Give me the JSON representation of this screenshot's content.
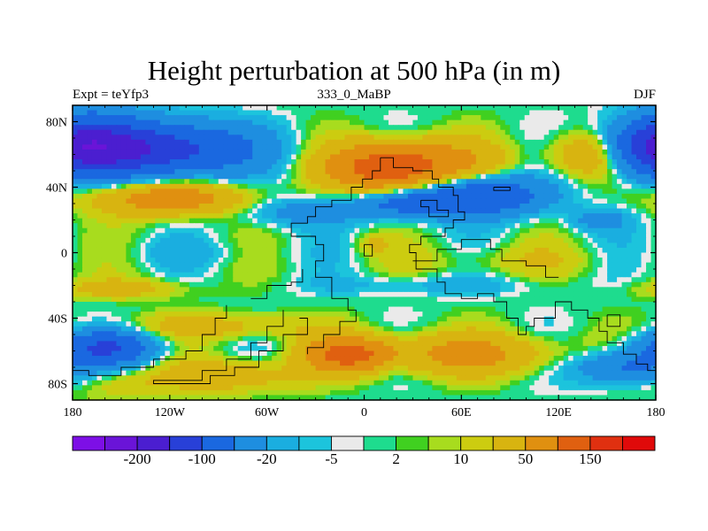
{
  "chart_data": {
    "type": "heatmap",
    "title": "Height perturbation at 500 hPa (in m)",
    "subtitle_left": "Expt = teYfp3",
    "subtitle_center": "333_0_MaBP",
    "subtitle_right": "DJF",
    "x_range": [
      -180,
      180
    ],
    "y_range": [
      -90,
      90
    ],
    "x_ticks": [
      {
        "value": -180,
        "label": "180"
      },
      {
        "value": -120,
        "label": "120W"
      },
      {
        "value": -60,
        "label": "60W"
      },
      {
        "value": 0,
        "label": "0"
      },
      {
        "value": 60,
        "label": "60E"
      },
      {
        "value": 120,
        "label": "120E"
      },
      {
        "value": 180,
        "label": "180"
      }
    ],
    "y_ticks": [
      {
        "value": 80,
        "label": "80N"
      },
      {
        "value": 40,
        "label": "40N"
      },
      {
        "value": 0,
        "label": "0"
      },
      {
        "value": -40,
        "label": "40S"
      },
      {
        "value": -80,
        "label": "80S"
      }
    ],
    "colorbar_colors": [
      "#7d0fe6",
      "#6a14d8",
      "#4b1ed0",
      "#2840d8",
      "#1a68e0",
      "#1e8ee0",
      "#1aaee0",
      "#1cc4dc",
      "#eaeaea",
      "#1edc8e",
      "#40d020",
      "#a8dc1e",
      "#cccc10",
      "#d8b410",
      "#e09010",
      "#e06010",
      "#e03010",
      "#e00a0a"
    ],
    "colorbar_labels": [
      {
        "boundary": 2,
        "label": "-200"
      },
      {
        "boundary": 4,
        "label": "-100"
      },
      {
        "boundary": 6,
        "label": "-20"
      },
      {
        "boundary": 8,
        "label": "-5"
      },
      {
        "boundary": 10,
        "label": "2"
      },
      {
        "boundary": 12,
        "label": "10"
      },
      {
        "boundary": 14,
        "label": "50"
      },
      {
        "boundary": 16,
        "label": "150"
      }
    ],
    "field_blobs": [
      {
        "lon": -130,
        "lat": 63,
        "rlon": 55,
        "rlat": 16,
        "amp": -140
      },
      {
        "lon": -170,
        "lat": 70,
        "rlon": 30,
        "rlat": 18,
        "amp": -60
      },
      {
        "lon": 175,
        "lat": 63,
        "rlon": 30,
        "rlat": 16,
        "amp": -80
      },
      {
        "lon": -120,
        "lat": 33,
        "rlon": 45,
        "rlat": 10,
        "amp": 80
      },
      {
        "lon": -40,
        "lat": 25,
        "rlon": 40,
        "rlat": 9,
        "amp": -30
      },
      {
        "lon": 15,
        "lat": 52,
        "rlon": 35,
        "rlat": 14,
        "amp": 140
      },
      {
        "lon": 55,
        "lat": 55,
        "rlon": 35,
        "rlat": 14,
        "amp": 40
      },
      {
        "lon": 70,
        "lat": 35,
        "rlon": 40,
        "rlat": 12,
        "amp": -100
      },
      {
        "lon": 25,
        "lat": 30,
        "rlon": 30,
        "rlat": 8,
        "amp": -60
      },
      {
        "lon": 140,
        "lat": 60,
        "rlon": 25,
        "rlat": 14,
        "amp": 60
      },
      {
        "lon": 145,
        "lat": 20,
        "rlon": 18,
        "rlat": 7,
        "amp": -30
      },
      {
        "lon": -110,
        "lat": 0,
        "rlon": 50,
        "rlat": 8,
        "amp": -8
      },
      {
        "lon": 90,
        "lat": -5,
        "rlon": 60,
        "rlat": 10,
        "amp": 15
      },
      {
        "lon": 5,
        "lat": 5,
        "rlon": 10,
        "rlat": 6,
        "amp": 20
      },
      {
        "lon": -150,
        "lat": -22,
        "rlon": 40,
        "rlat": 6,
        "amp": 30
      },
      {
        "lon": 40,
        "lat": -20,
        "rlon": 70,
        "rlat": 6,
        "amp": -15
      },
      {
        "lon": -90,
        "lat": -45,
        "rlon": 60,
        "rlat": 8,
        "amp": 30
      },
      {
        "lon": -160,
        "lat": -58,
        "rlon": 30,
        "rlat": 10,
        "amp": -100
      },
      {
        "lon": -10,
        "lat": -62,
        "rlon": 25,
        "rlat": 10,
        "amp": 110
      },
      {
        "lon": 60,
        "lat": -62,
        "rlon": 60,
        "rlat": 12,
        "amp": 60
      },
      {
        "lon": 20,
        "lat": -70,
        "rlon": 8,
        "rlat": 6,
        "amp": -10
      },
      {
        "lon": 160,
        "lat": -70,
        "rlon": 30,
        "rlat": 10,
        "amp": -60
      },
      {
        "lon": -80,
        "lat": -75,
        "rlon": 40,
        "rlat": 10,
        "amp": 40
      },
      {
        "lon": -150,
        "lat": -80,
        "rlon": 30,
        "rlat": 10,
        "amp": 20
      }
    ]
  }
}
